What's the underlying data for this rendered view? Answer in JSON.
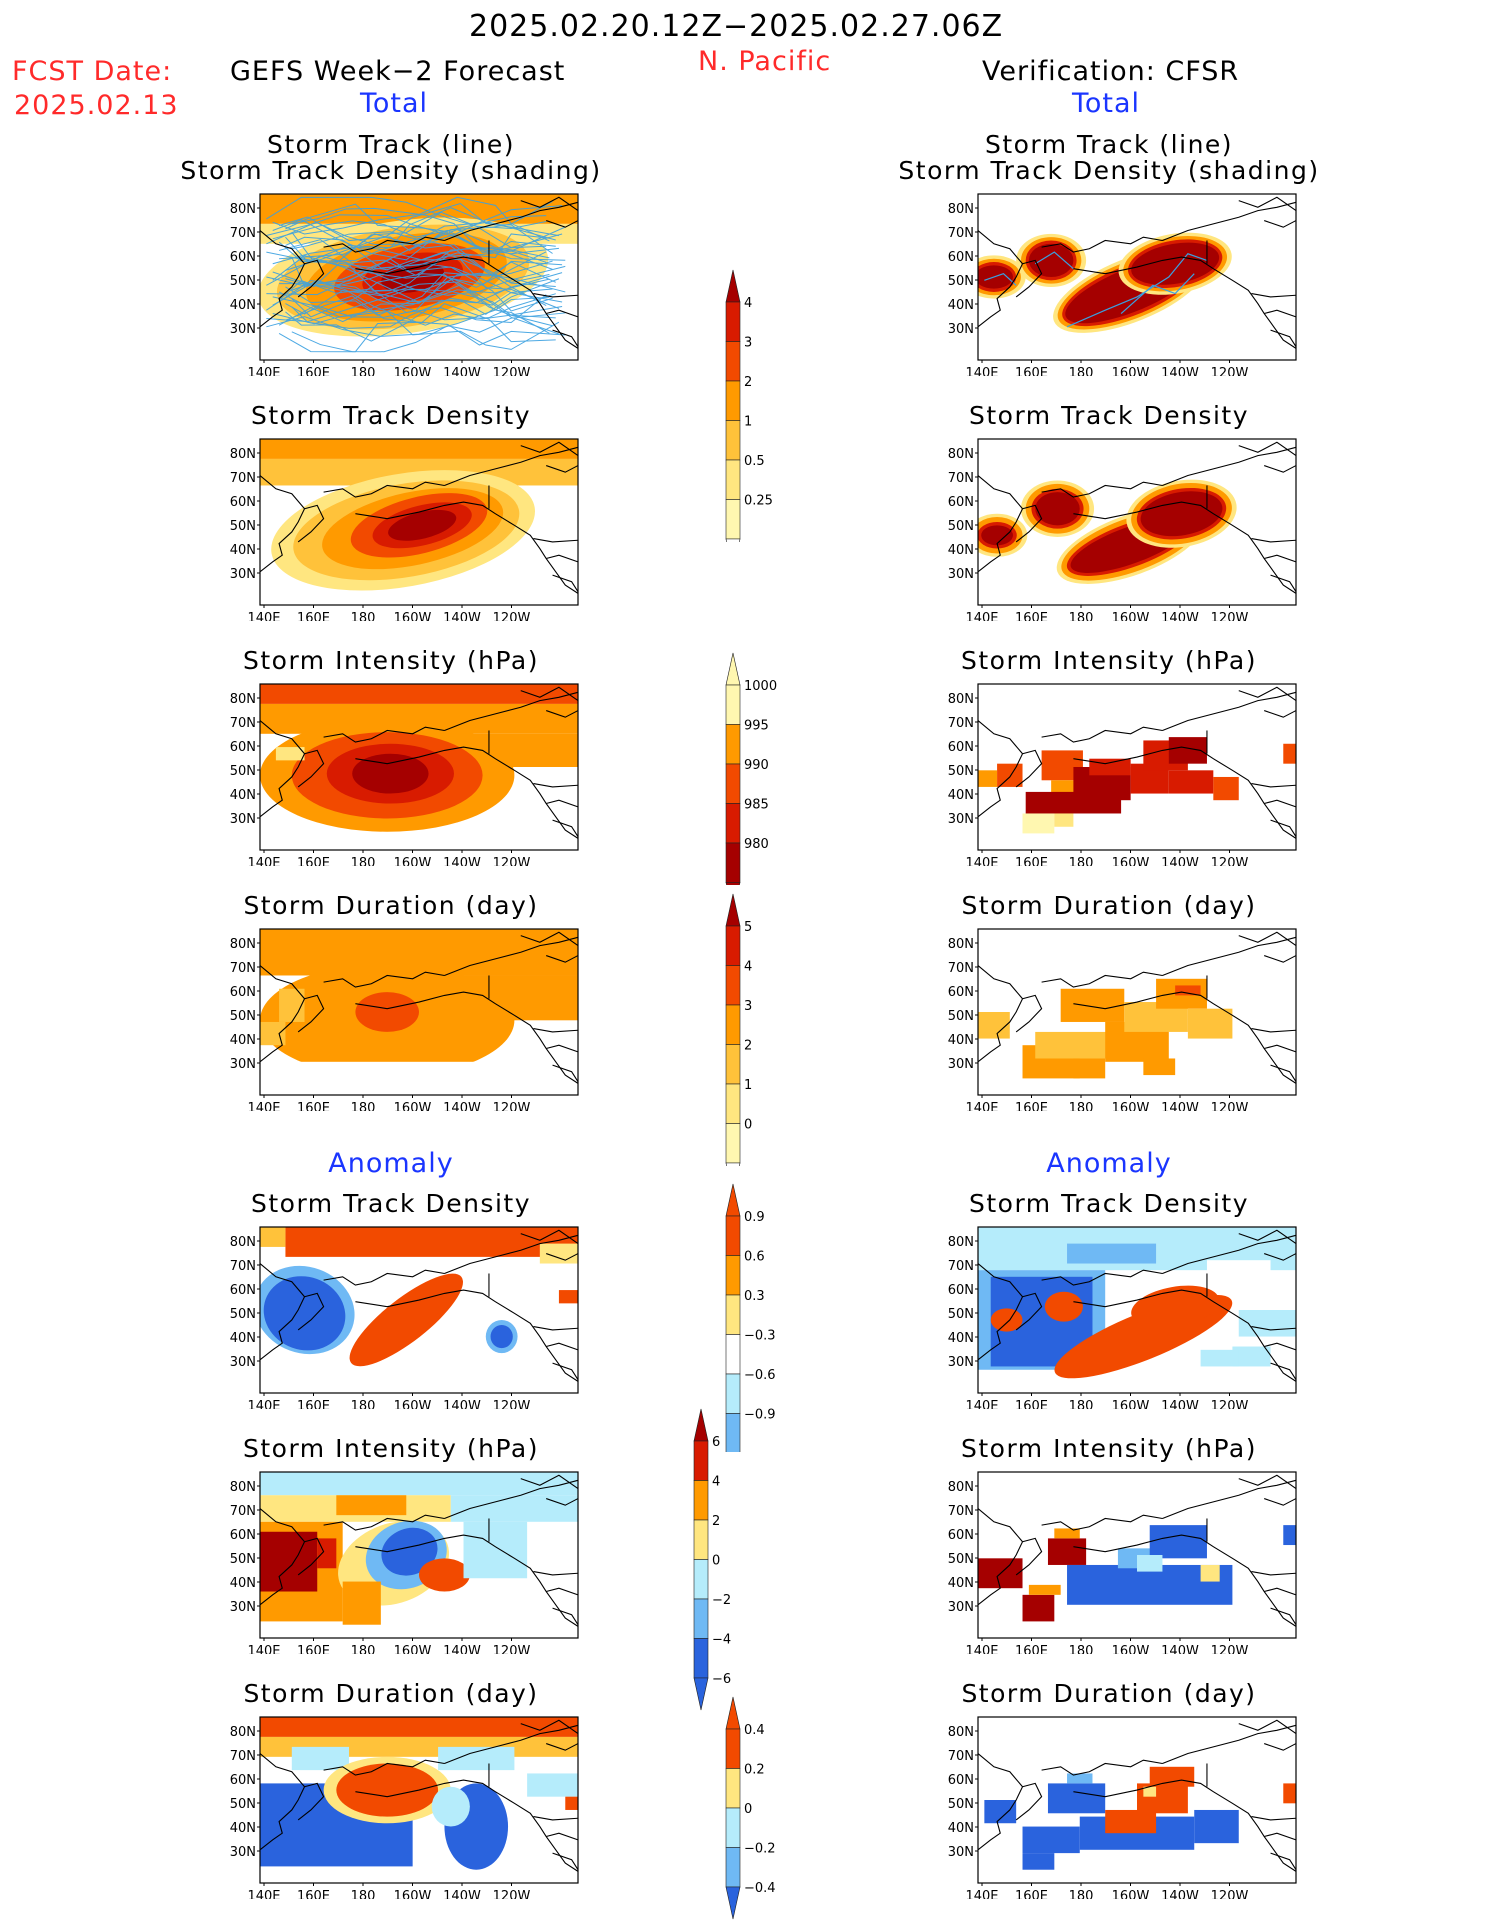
{
  "header": {
    "period": "2025.02.20.12Z−2025.02.27.06Z",
    "region": "N. Pacific",
    "fcst_label": "FCST Date:",
    "fcst_date": "2025.02.13",
    "left_title": "GEFS Week−2 Forecast",
    "right_title": "Verification: CFSR",
    "left_total": "Total",
    "right_total": "Total",
    "left_anomaly": "Anomaly",
    "right_anomaly": "Anomaly"
  },
  "panel_titles": {
    "track_line": "Storm Track (line)",
    "track_shading": "Storm Track Density (shading)",
    "density": "Storm Track Density",
    "intensity": "Storm Intensity (hPa)",
    "duration": "Storm Duration (day)"
  },
  "axes": {
    "lon_ticks": [
      "140E",
      "160E",
      "180",
      "160W",
      "140W",
      "120W"
    ],
    "lat_ticks": [
      "80N",
      "70N",
      "60N",
      "50N",
      "40N",
      "30N"
    ]
  },
  "colorbars": {
    "density_total": [
      "4",
      "3",
      "2",
      "1",
      "0.5",
      "0.25"
    ],
    "intensity_total": [
      "1000",
      "995",
      "990",
      "985",
      "980"
    ],
    "duration_total": [
      "5",
      "4",
      "3",
      "2",
      "1",
      "0"
    ],
    "density_anom": [
      "0.9",
      "0.6",
      "0.3",
      "−0.3",
      "−0.6",
      "−0.9"
    ],
    "intensity_anom": [
      "6",
      "4",
      "2",
      "0",
      "−2",
      "−4",
      "−6"
    ],
    "duration_anom": [
      "0.4",
      "0.2",
      "0",
      "−0.2",
      "−0.4"
    ]
  },
  "colors": {
    "darkred": "#a50000",
    "red": "#d81b00",
    "orangered": "#f24a00",
    "orange": "#ff9a00",
    "lightorange": "#ffc23a",
    "yellow": "#ffe680",
    "paleyellow": "#fff7b0",
    "lightblue": "#b5ecfb",
    "midblue": "#6fb9f4",
    "blue": "#2a63dd",
    "track_line": "#3aa0e0"
  }
}
